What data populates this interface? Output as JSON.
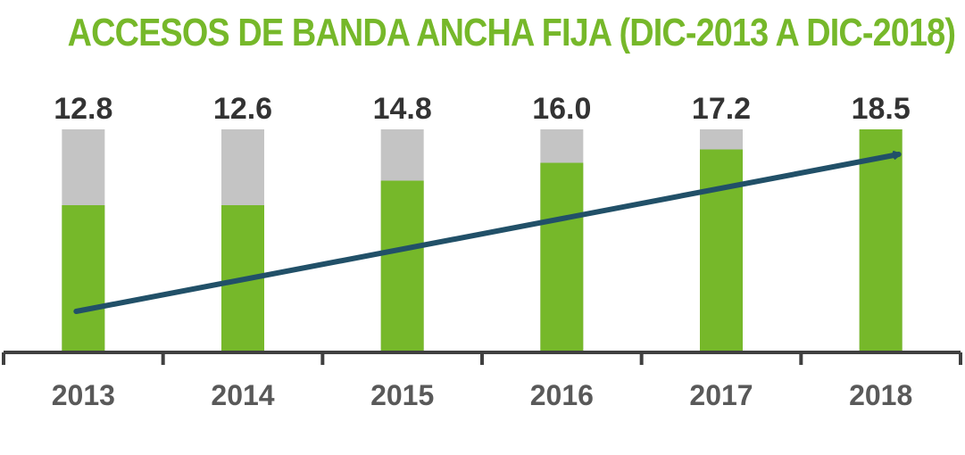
{
  "title": "ACCESOS DE BANDA ANCHA FIJA (DIC-2013 A DIC-2018)",
  "colors": {
    "title": "#76b82a",
    "green": "#76b82a",
    "gray": "#c4c4c4",
    "arrow": "#215068",
    "axis": "#404040"
  },
  "chart_data": {
    "type": "bar",
    "categories": [
      "2013",
      "2014",
      "2015",
      "2016",
      "2017",
      "2018"
    ],
    "totals": [
      12.8,
      12.6,
      14.8,
      16.0,
      17.2,
      18.5
    ],
    "total_labels": [
      "12.8",
      "12.6",
      "14.8",
      "16.0",
      "17.2",
      "18.5"
    ],
    "green_share": [
      0.66,
      0.66,
      0.77,
      0.85,
      0.91,
      1.0
    ],
    "trend": "upward arrow from 2013 to 2018",
    "grid": false,
    "legend": "none"
  }
}
